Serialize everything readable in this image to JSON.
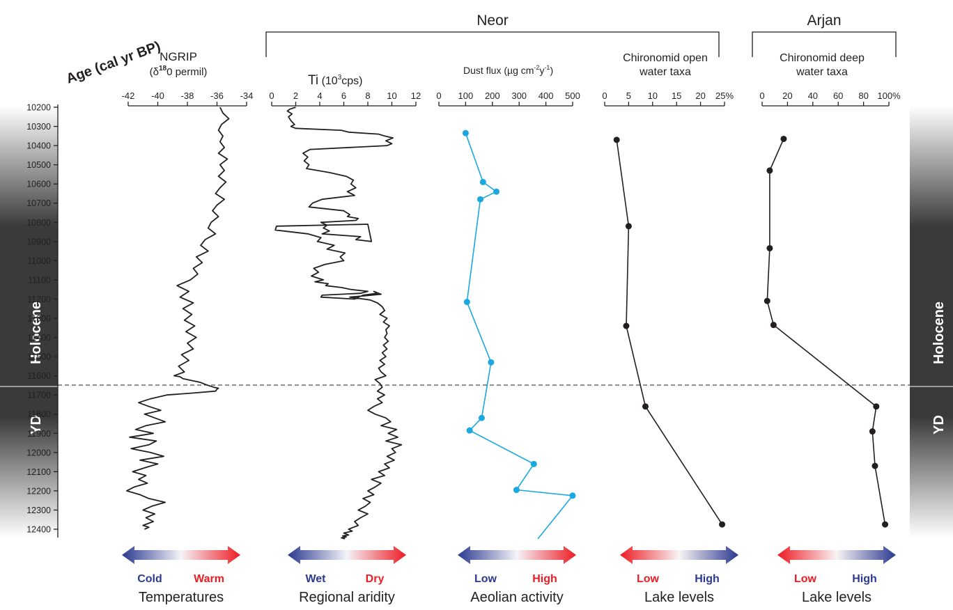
{
  "figure": {
    "age_label": "Age (cal yr BP)",
    "group_neor": "Neor",
    "group_arjan": "Arjan",
    "holocene_label": "Holocene",
    "yd_label": "YD"
  },
  "colors": {
    "blue_series": "#1ba8e0",
    "black_series": "#231f20",
    "cold_blue": "#2b3990",
    "warm_red": "#ed1c24"
  },
  "legend": [
    {
      "left": "Cold",
      "right": "Warm",
      "caption": "Temperatures",
      "direction": "blue-to-red"
    },
    {
      "left": "Wet",
      "right": "Dry",
      "caption": "Regional aridity",
      "direction": "blue-to-red"
    },
    {
      "left": "Low",
      "right": "High",
      "caption": "Aeolian activity",
      "direction": "blue-to-red"
    },
    {
      "left": "Low",
      "right": "High",
      "caption": "Lake levels",
      "direction": "red-to-blue"
    },
    {
      "left": "Low",
      "right": "High",
      "caption": "Lake levels",
      "direction": "red-to-blue"
    }
  ],
  "chart_data": [
    {
      "type": "line",
      "id": "ngrip",
      "title": "NGRIP",
      "xlabel": "(δ18O permil)",
      "ylabel": "Age (cal yr BP)",
      "xlim": [
        -43,
        -34
      ],
      "xticks": [
        "-42",
        "-40",
        "-38",
        "-36",
        "-34"
      ],
      "ylim": [
        10200,
        12400
      ],
      "yticks": [
        "10200",
        "10300",
        "10400",
        "10500",
        "10600",
        "10700",
        "10800",
        "10900",
        "11000",
        "11100",
        "11200",
        "11300",
        "11400",
        "11500",
        "11600",
        "11700",
        "11800",
        "11900",
        "12000",
        "12100",
        "12200",
        "12300",
        "12400"
      ],
      "x": [
        -35.8,
        -35.6,
        -35.2,
        -35.7,
        -35.9,
        -35.6,
        -35.8,
        -35.5,
        -35.9,
        -35.3,
        -35.8,
        -35.5,
        -35.9,
        -35.4,
        -35.8,
        -36.1,
        -35.5,
        -36.0,
        -36.3,
        -35.9,
        -36.4,
        -36.6,
        -36.1,
        -36.8,
        -37.1,
        -36.6,
        -37.4,
        -37.0,
        -37.6,
        -37.3,
        -37.8,
        -38.7,
        -37.9,
        -38.5,
        -37.6,
        -38.3,
        -37.7,
        -38.2,
        -37.5,
        -38.1,
        -37.4,
        -38.0,
        -37.6,
        -38.4,
        -37.9,
        -38.6,
        -38.2,
        -38.9,
        -38.5,
        -38.3,
        -37.7,
        -37.1,
        -36.8,
        -36.4,
        -36.2,
        -35.9,
        -36.0,
        -36.1,
        -37.6,
        -39.4,
        -40.5,
        -41.3,
        -40.6,
        -39.8,
        -40.9,
        -40.2,
        -39.5,
        -40.8,
        -41.5,
        -40.3,
        -41.9,
        -40.1,
        -40.6,
        -41.8,
        -40.5,
        -39.6,
        -41.2,
        -40.0,
        -40.9,
        -41.7,
        -40.8,
        -41.3,
        -40.7,
        -41.6,
        -42.1,
        -41.2,
        -40.6,
        -39.5,
        -40.4,
        -41.0,
        -40.2,
        -40.8,
        -40.3,
        -41.0,
        -40.6,
        -40.9
      ],
      "y": [
        10200,
        10230,
        10260,
        10290,
        10320,
        10350,
        10380,
        10410,
        10440,
        10470,
        10500,
        10530,
        10560,
        10590,
        10620,
        10650,
        10680,
        10710,
        10740,
        10770,
        10800,
        10830,
        10860,
        10890,
        10920,
        10950,
        10980,
        11010,
        11040,
        11070,
        11100,
        11130,
        11160,
        11190,
        11220,
        11250,
        11280,
        11310,
        11340,
        11370,
        11400,
        11430,
        11460,
        11490,
        11520,
        11550,
        11580,
        11600,
        11605,
        11615,
        11625,
        11635,
        11645,
        11655,
        11660,
        11665,
        11670,
        11680,
        11690,
        11700,
        11720,
        11740,
        11760,
        11780,
        11800,
        11820,
        11840,
        11860,
        11880,
        11900,
        11920,
        11940,
        11960,
        11980,
        12000,
        12020,
        12040,
        12060,
        12080,
        12100,
        12120,
        12140,
        12160,
        12180,
        12200,
        12220,
        12240,
        12260,
        12280,
        12300,
        12320,
        12340,
        12360,
        12380,
        12390,
        12400
      ]
    },
    {
      "type": "line",
      "id": "ti",
      "title": "Ti (10³cps)",
      "xlim": [
        0,
        12
      ],
      "xticks": [
        "0",
        "2",
        "4",
        "6",
        "8",
        "10",
        "12"
      ],
      "ylim": [
        10200,
        12400
      ],
      "x": [
        2.0,
        1.5,
        1.3,
        1.7,
        1.4,
        1.6,
        1.9,
        1.6,
        2.0,
        5.8,
        6.4,
        8.9,
        9.4,
        10.1,
        9.5,
        10.0,
        9.6,
        3.2,
        2.6,
        3.0,
        2.7,
        3.1,
        2.9,
        4.8,
        6.2,
        6.8,
        6.6,
        7.0,
        6.3,
        6.9,
        4.2,
        3.4,
        3.1,
        6.0,
        6.5,
        6.3,
        7.2,
        7.0,
        4.1,
        4.6,
        4.3,
        4.8,
        4.2,
        7.4,
        7.0,
        8.3,
        8.0,
        0.4,
        0.3,
        3.0,
        4.1,
        3.8,
        5.2,
        4.6,
        6.1,
        5.7,
        6.0,
        4.4,
        3.5,
        3.9,
        3.3,
        4.3,
        3.6,
        4.7,
        4.5,
        5.8,
        6.6,
        8.0,
        7.4,
        4.2,
        4.1,
        6.9,
        7.6,
        8.8,
        8.5,
        9.1,
        6.5,
        8.2,
        8.8,
        9.2,
        9.4,
        9.0,
        9.6,
        9.3,
        9.8,
        9.5,
        9.6,
        9.4,
        9.7,
        9.3,
        9.6,
        9.2,
        9.5,
        9.0,
        9.4,
        8.9,
        9.1,
        9.5,
        8.6,
        9.0,
        9.2,
        8.8,
        9.4,
        8.8,
        9.2,
        8.5,
        8.0,
        8.6,
        9.5,
        9.9,
        9.1,
        10.4,
        9.7,
        10.5,
        9.5,
        10.8,
        10.0,
        10.3,
        9.6,
        10.2,
        9.4,
        9.8,
        8.9,
        9.4,
        8.3,
        9.1,
        8.6,
        8.0,
        8.5,
        7.6,
        8.2,
        7.8,
        7.2,
        8.0,
        7.4,
        6.9,
        7.2,
        6.4,
        6.7,
        6.0,
        6.4,
        5.9,
        6.2,
        5.8,
        6.1
      ],
      "y": [
        10200,
        10210,
        10220,
        10235,
        10250,
        10270,
        10290,
        10300,
        10310,
        10320,
        10330,
        10340,
        10350,
        10360,
        10375,
        10390,
        10400,
        10420,
        10440,
        10460,
        10480,
        10500,
        10520,
        10540,
        10560,
        10580,
        10600,
        10620,
        10640,
        10660,
        10680,
        10700,
        10720,
        10740,
        10760,
        10770,
        10780,
        10790,
        10800,
        10815,
        10830,
        10845,
        10860,
        10875,
        10890,
        10900,
        10810,
        10820,
        10840,
        10860,
        10880,
        10900,
        10920,
        10940,
        10960,
        10980,
        11000,
        11020,
        11040,
        11060,
        11080,
        11100,
        11110,
        11120,
        11130,
        11140,
        11150,
        11160,
        11170,
        11180,
        11190,
        11200,
        11180,
        11170,
        11160,
        11175,
        11190,
        11205,
        11220,
        11240,
        11260,
        11280,
        11300,
        11320,
        11340,
        11360,
        11380,
        11400,
        11420,
        11440,
        11460,
        11480,
        11500,
        11520,
        11540,
        11560,
        11580,
        11600,
        11620,
        11640,
        11660,
        11680,
        11700,
        11720,
        11740,
        11760,
        11780,
        11800,
        11820,
        11840,
        11860,
        11880,
        11900,
        11920,
        11940,
        11960,
        11980,
        12000,
        12020,
        12040,
        12060,
        12080,
        12100,
        12120,
        12140,
        12160,
        12180,
        12200,
        12220,
        12240,
        12260,
        12280,
        12300,
        12320,
        12340,
        12360,
        12380,
        12400,
        12410,
        12420,
        12430,
        12435,
        12440,
        12445,
        12450
      ]
    },
    {
      "type": "line",
      "id": "dust",
      "title": "Dust flux (µg cm-2y-1)",
      "xlim": [
        0,
        500
      ],
      "xticks": [
        "0",
        "100",
        "200",
        "300",
        "400",
        "500"
      ],
      "ylim": [
        10200,
        12400
      ],
      "color": "#1ba8e0",
      "x": [
        100,
        165,
        215,
        155,
        105,
        195,
        160,
        115,
        355,
        290,
        500,
        370
      ],
      "y": [
        10335,
        10590,
        10640,
        10680,
        11215,
        11530,
        11820,
        11885,
        12060,
        12195,
        12225,
        12450
      ]
    },
    {
      "type": "line",
      "id": "chiro-open",
      "title": "Chironomid open water taxa",
      "xlim": [
        0,
        25
      ],
      "xticks": [
        "0",
        "5",
        "10",
        "15",
        "20",
        "25%"
      ],
      "ylim": [
        10200,
        12400
      ],
      "x": [
        2.5,
        5.0,
        4.5,
        8.5,
        24.5
      ],
      "y": [
        10370,
        10820,
        11340,
        11760,
        12375
      ]
    },
    {
      "type": "line",
      "id": "chiro-deep",
      "title": "Chironomid deep water taxa",
      "xlim": [
        0,
        100
      ],
      "xticks": [
        "0",
        "20",
        "40",
        "60",
        "80",
        "100%"
      ],
      "ylim": [
        10200,
        12400
      ],
      "x": [
        17,
        6,
        6,
        4,
        9,
        90,
        87,
        89,
        97
      ],
      "y": [
        10365,
        10530,
        10935,
        11210,
        11335,
        11760,
        11890,
        12070,
        12375
      ]
    }
  ]
}
